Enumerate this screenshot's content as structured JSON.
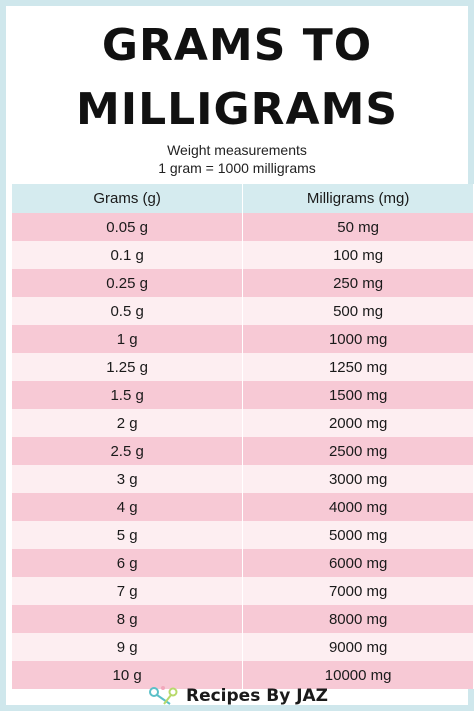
{
  "header": {
    "title_line1": "GRAMS TO",
    "title_line2": "MILLIGRAMS",
    "subtitle_line1": "Weight measurements",
    "subtitle_line2": "1 gram =  1000 milligrams"
  },
  "table": {
    "columns": [
      "Grams (g)",
      "Milligrams (mg)"
    ],
    "rows": [
      [
        "0.05 g",
        "50 mg"
      ],
      [
        "0.1 g",
        "100 mg"
      ],
      [
        "0.25 g",
        "250 mg"
      ],
      [
        "0.5 g",
        "500 mg"
      ],
      [
        "1 g",
        "1000 mg"
      ],
      [
        "1.25 g",
        "1250 mg"
      ],
      [
        "1.5 g",
        "1500 mg"
      ],
      [
        "2 g",
        "2000 mg"
      ],
      [
        "2.5 g",
        "2500 mg"
      ],
      [
        "3 g",
        "3000 mg"
      ],
      [
        "4 g",
        "4000 mg"
      ],
      [
        "5 g",
        "5000 mg"
      ],
      [
        "6 g",
        "6000 mg"
      ],
      [
        "7 g",
        "7000 mg"
      ],
      [
        "8 g",
        "8000 mg"
      ],
      [
        "9 g",
        "9000 mg"
      ],
      [
        "10 g",
        "10000 mg"
      ]
    ]
  },
  "footer": {
    "brand": "Recipes By JAZ",
    "logo_icon": "whisk-icon"
  },
  "colors": {
    "border": "#cfe7ec",
    "header_row": "#d5ebef",
    "row_pink": "#f7c9d5",
    "row_light": "#fdeef1"
  }
}
